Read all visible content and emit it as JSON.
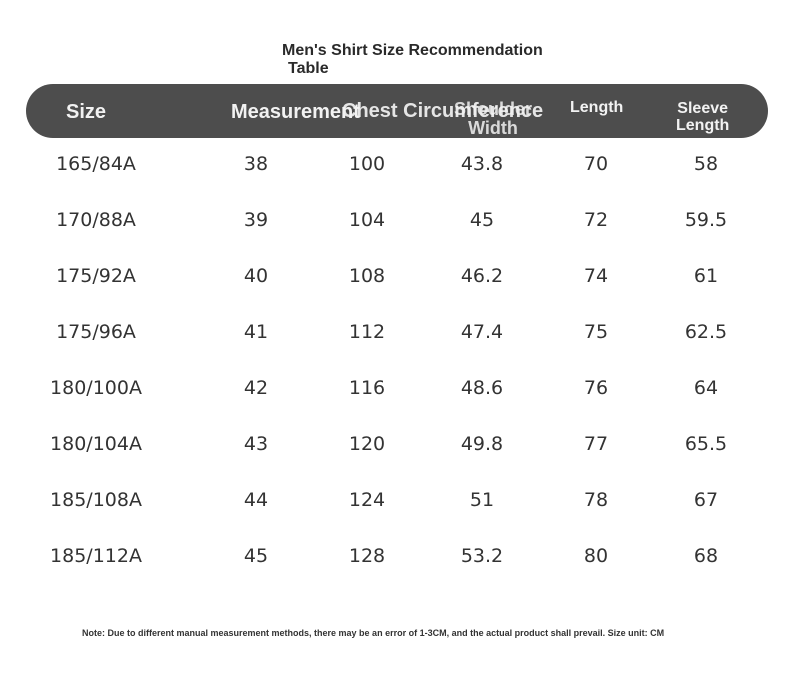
{
  "title": {
    "line1": "Men's Shirt Size Recommendation",
    "line2": "Table"
  },
  "headers": {
    "size": "Size",
    "measurement": "Measurement",
    "chest": "Chest Circumference",
    "shoulder_line1": "Shoulder",
    "shoulder_line2": "Width",
    "length": "Length",
    "sleeve_line1": "Sleeve",
    "sleeve_line2": "Length"
  },
  "rows": [
    [
      "165/84A",
      "38",
      "100",
      "43.8",
      "70",
      "58"
    ],
    [
      "170/88A",
      "39",
      "104",
      "45",
      "72",
      "59.5"
    ],
    [
      "175/92A",
      "40",
      "108",
      "46.2",
      "74",
      "61"
    ],
    [
      "175/96A",
      "41",
      "112",
      "47.4",
      "75",
      "62.5"
    ],
    [
      "180/100A",
      "42",
      "116",
      "48.6",
      "76",
      "64"
    ],
    [
      "180/104A",
      "43",
      "120",
      "49.8",
      "77",
      "65.5"
    ],
    [
      "185/108A",
      "44",
      "124",
      "51",
      "78",
      "67"
    ],
    [
      "185/112A",
      "45",
      "128",
      "53.2",
      "80",
      "68"
    ]
  ],
  "note": "Note: Due to different manual measurement methods, there may be an error of 1-3CM, and the actual product shall prevail. Size unit: CM",
  "colors": {
    "header_bg": "#4d4d4d",
    "header_text": "#f2f2f2",
    "body_text": "#333333"
  }
}
